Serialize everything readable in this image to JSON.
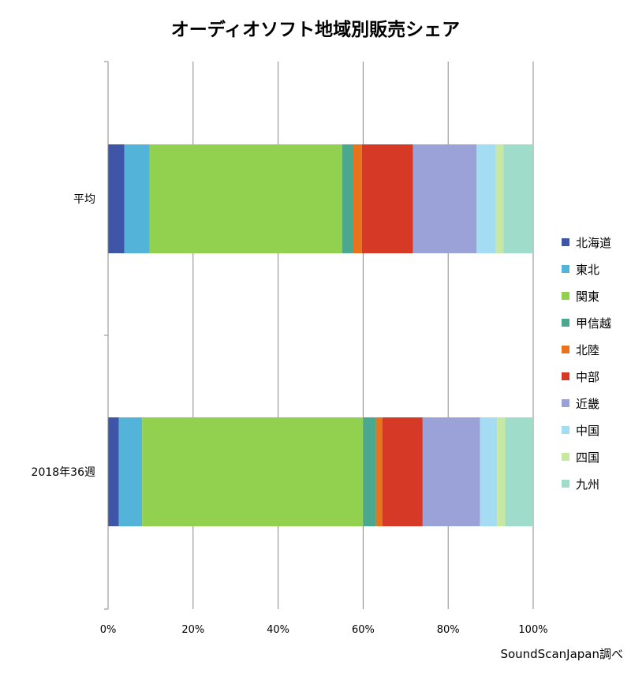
{
  "source_note": "SoundScanJapan調べ",
  "colors": {
    "grid": "#888888",
    "axis": "#888888"
  },
  "chart_data": {
    "type": "bar",
    "orientation": "horizontal",
    "stacked": "percent",
    "title": "オーディオソフト地域別販売シェア",
    "xlabel": "",
    "ylabel": "",
    "xlim": [
      0,
      100
    ],
    "x_ticks": [
      "0%",
      "20%",
      "40%",
      "60%",
      "80%",
      "100%"
    ],
    "categories": [
      "平均",
      "2018年36週"
    ],
    "grid": true,
    "legend_position": "right",
    "series": [
      {
        "name": "北海道",
        "color": "#3f55a8",
        "values": [
          3.8,
          2.5
        ]
      },
      {
        "name": "東北",
        "color": "#54b3d9",
        "values": [
          6.0,
          5.5
        ]
      },
      {
        "name": "関東",
        "color": "#92d050",
        "values": [
          45.3,
          52.0
        ]
      },
      {
        "name": "甲信越",
        "color": "#4aa88f",
        "values": [
          2.6,
          3.0
        ]
      },
      {
        "name": "北陸",
        "color": "#e8731c",
        "values": [
          2.0,
          1.5
        ]
      },
      {
        "name": "中部",
        "color": "#d63a26",
        "values": [
          12.0,
          9.5
        ]
      },
      {
        "name": "近畿",
        "color": "#9aa2d8",
        "values": [
          15.0,
          13.5
        ]
      },
      {
        "name": "中国",
        "color": "#a4dcf4",
        "values": [
          4.5,
          4.0
        ]
      },
      {
        "name": "四国",
        "color": "#c6e8a0",
        "values": [
          1.8,
          1.9
        ]
      },
      {
        "name": "九州",
        "color": "#9fdcc9",
        "values": [
          7.0,
          6.6
        ]
      }
    ]
  }
}
